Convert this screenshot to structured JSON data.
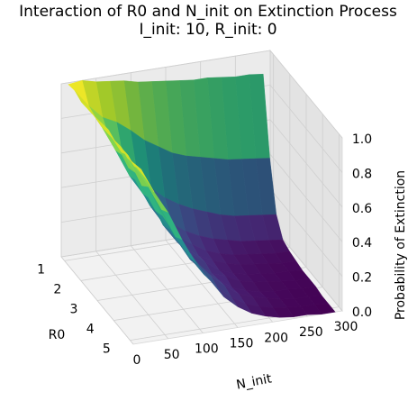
{
  "chart_data": {
    "type": "surface",
    "title": "Interaction of R0 and N_init on Extinction Process",
    "subtitle": "I_init: 10, R_init: 0",
    "xlabel": "N_init",
    "ylabel": "R0",
    "zlabel": "Probability of Extinction",
    "colormap": "viridis",
    "x_ticks": [
      0,
      50,
      100,
      150,
      200,
      250,
      300
    ],
    "y_ticks": [
      1,
      2,
      3,
      4,
      5
    ],
    "z_ticks": [
      "0.0",
      "0.2",
      "0.4",
      "0.6",
      "0.8",
      "1.0"
    ],
    "xlim": [
      0,
      300
    ],
    "ylim": [
      0.8,
      5.2
    ],
    "zlim": [
      0,
      1
    ],
    "N_init": [
      10,
      30,
      50,
      70,
      90,
      110,
      130,
      150,
      170,
      190,
      210,
      230,
      250,
      270,
      290
    ],
    "R0": [
      0.8,
      1.2,
      1.6,
      2.0,
      2.4,
      2.8,
      3.2,
      3.6,
      4.0,
      4.4,
      4.8,
      5.2
    ],
    "probability": [
      [
        0.99,
        1.0,
        0.98,
        1.0,
        0.99,
        0.98,
        1.0,
        0.99,
        1.0,
        0.98,
        0.99,
        1.0
      ],
      [
        1.0,
        0.9,
        0.88,
        0.87,
        0.9,
        0.88,
        0.86,
        0.89,
        0.87,
        0.9,
        0.88,
        0.86
      ],
      [
        0.98,
        0.82,
        0.75,
        0.72,
        0.74,
        0.71,
        0.73,
        0.7,
        0.74,
        0.72,
        0.7,
        0.73
      ],
      [
        0.97,
        0.78,
        0.62,
        0.56,
        0.58,
        0.55,
        0.57,
        0.54,
        0.56,
        0.55,
        0.53,
        0.56
      ],
      [
        0.96,
        0.72,
        0.52,
        0.44,
        0.42,
        0.43,
        0.4,
        0.42,
        0.41,
        0.43,
        0.4,
        0.41
      ],
      [
        0.94,
        0.65,
        0.42,
        0.33,
        0.3,
        0.31,
        0.29,
        0.3,
        0.28,
        0.31,
        0.29,
        0.3
      ],
      [
        0.93,
        0.6,
        0.35,
        0.25,
        0.22,
        0.2,
        0.21,
        0.19,
        0.2,
        0.22,
        0.2,
        0.19
      ],
      [
        0.92,
        0.55,
        0.3,
        0.19,
        0.16,
        0.14,
        0.15,
        0.13,
        0.14,
        0.15,
        0.13,
        0.12
      ],
      [
        0.91,
        0.52,
        0.26,
        0.15,
        0.11,
        0.1,
        0.09,
        0.1,
        0.08,
        0.09,
        0.08,
        0.07
      ],
      [
        0.9,
        0.5,
        0.23,
        0.12,
        0.08,
        0.07,
        0.06,
        0.06,
        0.05,
        0.06,
        0.05,
        0.04
      ],
      [
        0.9,
        0.48,
        0.2,
        0.1,
        0.06,
        0.05,
        0.04,
        0.04,
        0.03,
        0.04,
        0.03,
        0.02
      ],
      [
        0.89,
        0.46,
        0.18,
        0.08,
        0.05,
        0.04,
        0.03,
        0.03,
        0.02,
        0.02,
        0.02,
        0.01
      ],
      [
        0.88,
        0.45,
        0.17,
        0.07,
        0.04,
        0.03,
        0.02,
        0.02,
        0.02,
        0.01,
        0.01,
        0.01
      ],
      [
        0.88,
        0.44,
        0.16,
        0.06,
        0.03,
        0.02,
        0.02,
        0.01,
        0.01,
        0.01,
        0.01,
        0.0
      ],
      [
        0.87,
        0.43,
        0.15,
        0.05,
        0.03,
        0.02,
        0.01,
        0.01,
        0.01,
        0.0,
        0.0,
        0.0
      ]
    ],
    "grid": true
  }
}
